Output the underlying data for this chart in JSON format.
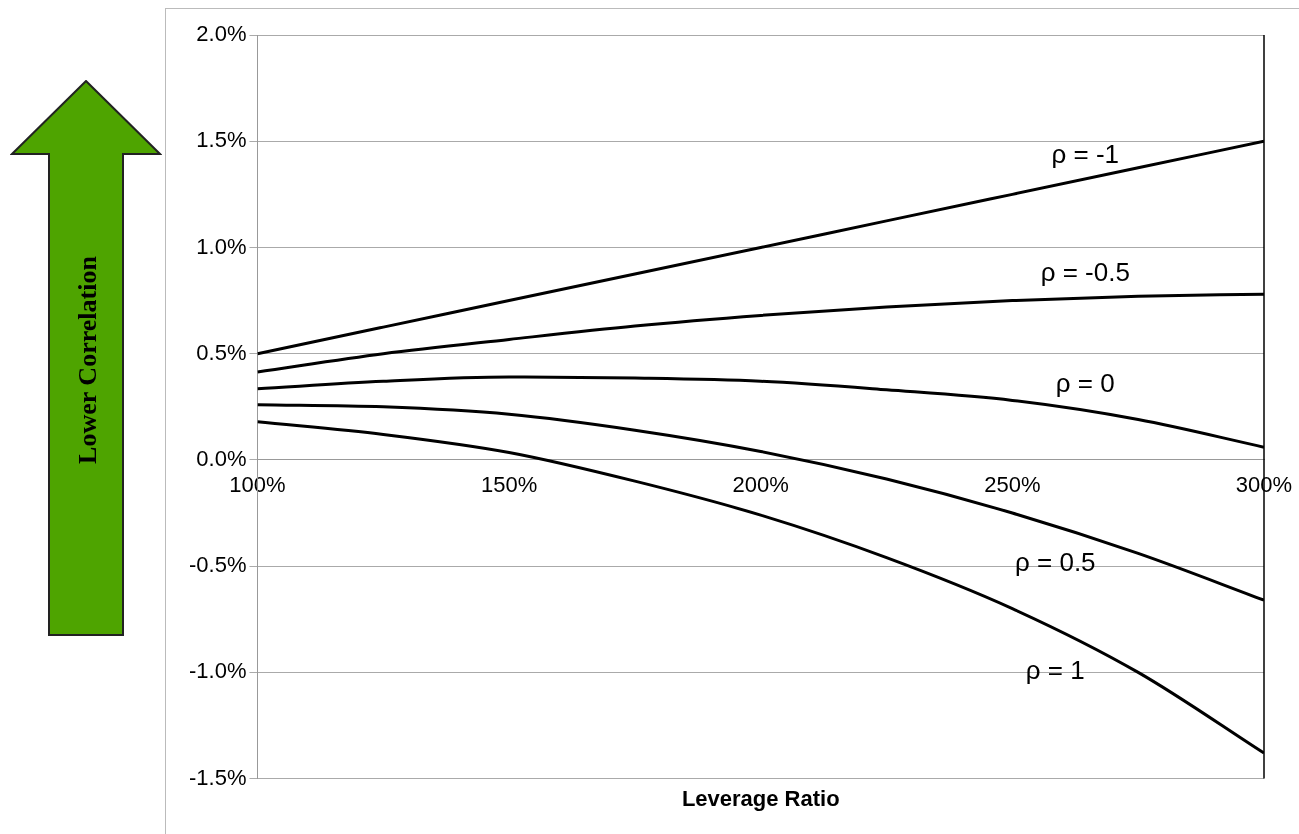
{
  "chart_data": {
    "type": "line",
    "xlabel": "Leverage Ratio",
    "annotations": [
      "Lower Correlation"
    ],
    "x": [
      100,
      125,
      150,
      175,
      200,
      225,
      250,
      275,
      300
    ],
    "series": [
      {
        "name": "ρ = -1",
        "color": "#000000",
        "values": [
          0.5,
          0.625,
          0.75,
          0.875,
          1.0,
          1.125,
          1.25,
          1.375,
          1.5
        ]
      },
      {
        "name": "ρ = -0.5",
        "color": "#000000",
        "values": [
          0.414,
          0.5,
          0.567,
          0.63,
          0.68,
          0.72,
          0.75,
          0.77,
          0.78
        ]
      },
      {
        "name": "ρ = 0",
        "color": "#000000",
        "values": [
          0.335,
          0.37,
          0.39,
          0.385,
          0.37,
          0.33,
          0.28,
          0.19,
          0.06
        ]
      },
      {
        "name": "ρ = 0.5",
        "color": "#000000",
        "values": [
          0.26,
          0.25,
          0.215,
          0.14,
          0.04,
          -0.09,
          -0.25,
          -0.44,
          -0.66
        ]
      },
      {
        "name": "ρ = 1",
        "color": "#000000",
        "values": [
          0.18,
          0.12,
          0.035,
          -0.1,
          -0.26,
          -0.46,
          -0.7,
          -1.0,
          -1.38
        ]
      }
    ],
    "xlim": [
      100,
      300
    ],
    "xticks": [
      {
        "value": 100,
        "label": "100%"
      },
      {
        "value": 150,
        "label": "150%"
      },
      {
        "value": 200,
        "label": "200%"
      },
      {
        "value": 250,
        "label": "250%"
      },
      {
        "value": 300,
        "label": "300%"
      }
    ],
    "ylim": [
      -1.5,
      2.0
    ],
    "yticks": [
      {
        "value": -1.5,
        "label": "-1.5%"
      },
      {
        "value": -1.0,
        "label": "-1.0%"
      },
      {
        "value": -0.5,
        "label": "-0.5%"
      },
      {
        "value": 0,
        "label": "0.0%"
      },
      {
        "value": 0.5,
        "label": "0.5%"
      },
      {
        "value": 1.0,
        "label": "1.0%"
      },
      {
        "value": 1.5,
        "label": "1.5%"
      },
      {
        "value": 2.0,
        "label": "2.0%"
      }
    ],
    "grid": "y",
    "legend": false,
    "marker": "none",
    "line_style": "solid"
  }
}
